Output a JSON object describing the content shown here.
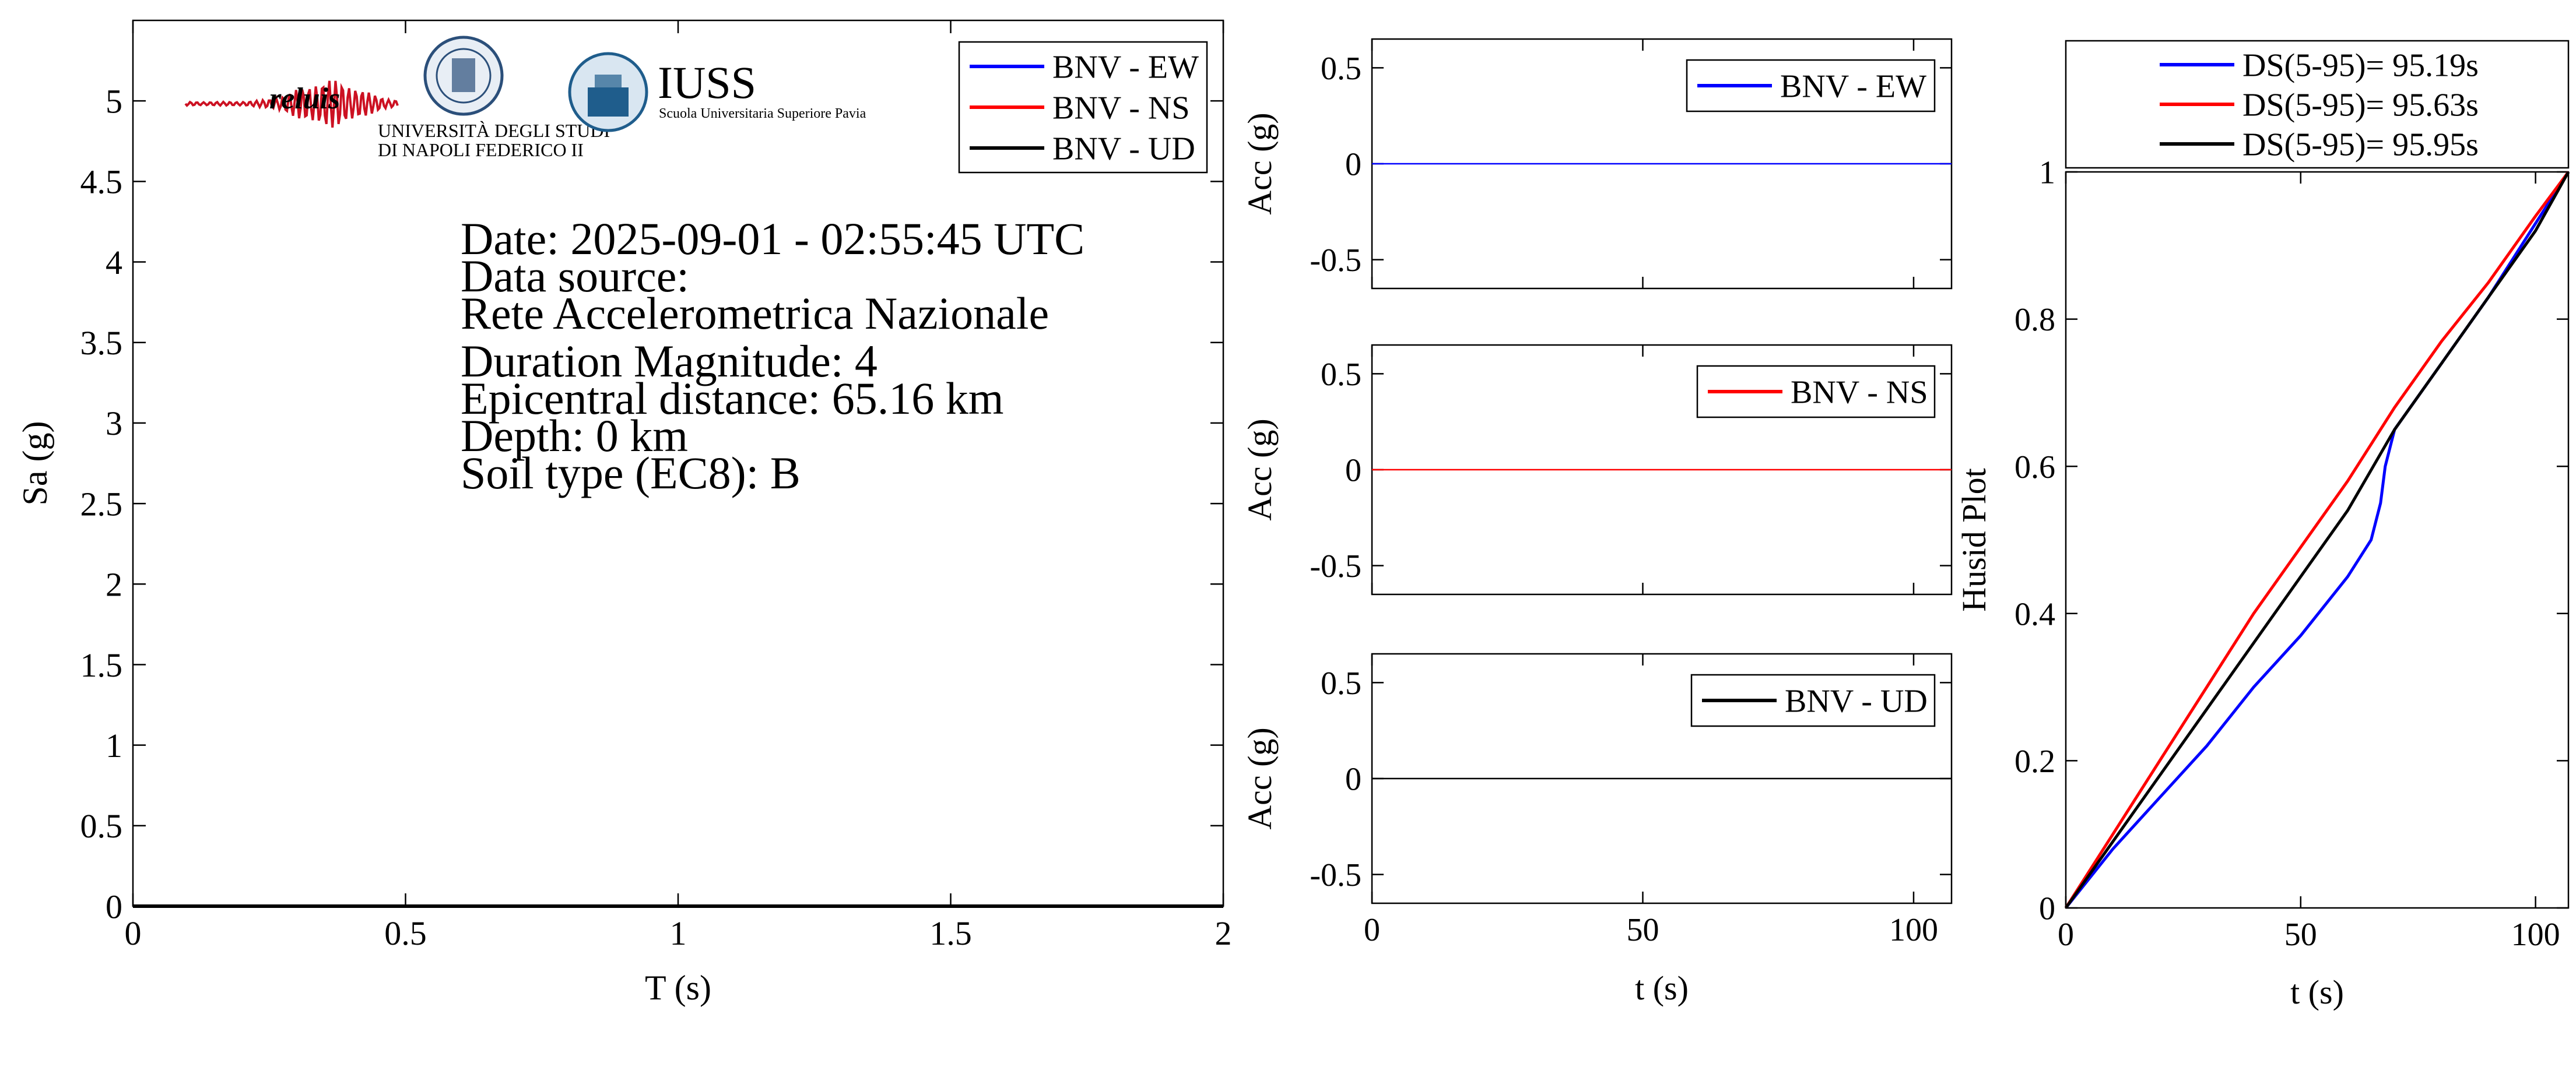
{
  "colors": {
    "ew": "#0000ff",
    "ns": "#ff0000",
    "ud": "#000000",
    "axis": "#000000",
    "relu_red": "#cc1122",
    "relu_blue": "#1a2a8a",
    "iuss_blue": "#1f5d8c",
    "unina_blue": "#2b4f7a"
  },
  "logos": {
    "reluis": "reluis",
    "unina_line1": "UNIVERSITÀ DEGLI STUDI",
    "unina_line2": "DI NAPOLI FEDERICO II",
    "iuss_title": "IUSS",
    "iuss_subtitle": "Scuola Universitaria Superiore Pavia"
  },
  "info": {
    "date": "Date: 2025-09-01 - 02:55:45 UTC",
    "source_label": "Data source:",
    "source_name": "Rete Accelerometrica Nazionale",
    "magnitude": "Duration Magnitude: 4",
    "distance": "Epicentral distance: 65.16 km",
    "depth": "Depth: 0 km",
    "soil": "Soil type (EC8): B"
  },
  "chart_data": [
    {
      "type": "line",
      "id": "spectrum",
      "xlabel": "T (s)",
      "ylabel": "Sa (g)",
      "xlim": [
        0,
        2
      ],
      "ylim": [
        0,
        5.5
      ],
      "xticks": [
        0,
        0.5,
        1,
        1.5,
        2
      ],
      "xtick_labels": [
        "0",
        "0.5",
        "1",
        "1.5",
        "2"
      ],
      "yticks": [
        0,
        0.5,
        1,
        1.5,
        2,
        2.5,
        3,
        3.5,
        4,
        4.5,
        5
      ],
      "ytick_labels": [
        "0",
        "0.5",
        "1",
        "1.5",
        "2",
        "2.5",
        "3",
        "3.5",
        "4",
        "4.5",
        "5"
      ],
      "legend_position": "top-right",
      "series": [
        {
          "name": "BNV - EW",
          "color": "#0000ff",
          "x": [
            0,
            2
          ],
          "y": [
            0,
            0
          ]
        },
        {
          "name": "BNV - NS",
          "color": "#ff0000",
          "x": [
            0,
            2
          ],
          "y": [
            0,
            0
          ]
        },
        {
          "name": "BNV - UD",
          "color": "#000000",
          "x": [
            0,
            2
          ],
          "y": [
            0,
            0
          ]
        }
      ]
    },
    {
      "type": "line",
      "id": "acc-ew",
      "xlabel": "",
      "ylabel": "Acc (g)",
      "xlim": [
        0,
        107
      ],
      "ylim": [
        -0.65,
        0.65
      ],
      "xticks": [
        0,
        50,
        100
      ],
      "yticks": [
        0.5,
        0,
        -0.5
      ],
      "ytick_labels": [
        "0.5",
        "0",
        "-0.5"
      ],
      "legend_position": "top-right",
      "series": [
        {
          "name": "BNV - EW",
          "color": "#0000ff",
          "x": [
            0,
            107
          ],
          "y": [
            0,
            0
          ]
        }
      ]
    },
    {
      "type": "line",
      "id": "acc-ns",
      "xlabel": "",
      "ylabel": "Acc (g)",
      "xlim": [
        0,
        107
      ],
      "ylim": [
        -0.65,
        0.65
      ],
      "xticks": [
        0,
        50,
        100
      ],
      "yticks": [
        0.5,
        0,
        -0.5
      ],
      "ytick_labels": [
        "0.5",
        "0",
        "-0.5"
      ],
      "legend_position": "top-right",
      "series": [
        {
          "name": "BNV - NS",
          "color": "#ff0000",
          "x": [
            0,
            107
          ],
          "y": [
            0,
            0
          ]
        }
      ]
    },
    {
      "type": "line",
      "id": "acc-ud",
      "xlabel": "t (s)",
      "ylabel": "Acc (g)",
      "xlim": [
        0,
        107
      ],
      "ylim": [
        -0.65,
        0.65
      ],
      "xticks": [
        0,
        50,
        100
      ],
      "xtick_labels": [
        "0",
        "50",
        "100"
      ],
      "yticks": [
        0.5,
        0,
        -0.5
      ],
      "ytick_labels": [
        "0.5",
        "0",
        "-0.5"
      ],
      "legend_position": "top-right",
      "series": [
        {
          "name": "BNV - UD",
          "color": "#000000",
          "x": [
            0,
            107
          ],
          "y": [
            0,
            0
          ]
        }
      ]
    },
    {
      "type": "line",
      "id": "husid",
      "xlabel": "t (s)",
      "ylabel": "Husid Plot",
      "xlim": [
        0,
        107
      ],
      "ylim": [
        0,
        1
      ],
      "xticks": [
        0,
        50,
        100
      ],
      "xtick_labels": [
        "0",
        "50",
        "100"
      ],
      "yticks": [
        0,
        0.2,
        0.4,
        0.6,
        0.8,
        1
      ],
      "ytick_labels": [
        "0",
        "0.2",
        "0.4",
        "0.6",
        "0.8",
        "1"
      ],
      "legend_position": "above",
      "series": [
        {
          "name": "DS(5-95)= 95.19s",
          "color": "#0000ff",
          "x": [
            0,
            5,
            10,
            20,
            30,
            40,
            50,
            60,
            65,
            67,
            68,
            70,
            80,
            90,
            95,
            100,
            107
          ],
          "y": [
            0,
            0.04,
            0.08,
            0.15,
            0.22,
            0.3,
            0.37,
            0.45,
            0.5,
            0.55,
            0.6,
            0.65,
            0.74,
            0.83,
            0.88,
            0.93,
            1.0
          ]
        },
        {
          "name": "DS(5-95)= 95.63s",
          "color": "#ff0000",
          "x": [
            0,
            5,
            10,
            20,
            30,
            40,
            50,
            60,
            68,
            70,
            80,
            90,
            100,
            107
          ],
          "y": [
            0,
            0.05,
            0.1,
            0.2,
            0.3,
            0.4,
            0.49,
            0.58,
            0.66,
            0.68,
            0.77,
            0.85,
            0.94,
            1.0
          ]
        },
        {
          "name": "DS(5-95)= 95.95s",
          "color": "#000000",
          "x": [
            0,
            5,
            10,
            20,
            30,
            40,
            50,
            60,
            70,
            80,
            90,
            100,
            107
          ],
          "y": [
            0,
            0.045,
            0.09,
            0.18,
            0.27,
            0.36,
            0.45,
            0.54,
            0.65,
            0.74,
            0.83,
            0.92,
            1.0
          ]
        }
      ]
    }
  ]
}
